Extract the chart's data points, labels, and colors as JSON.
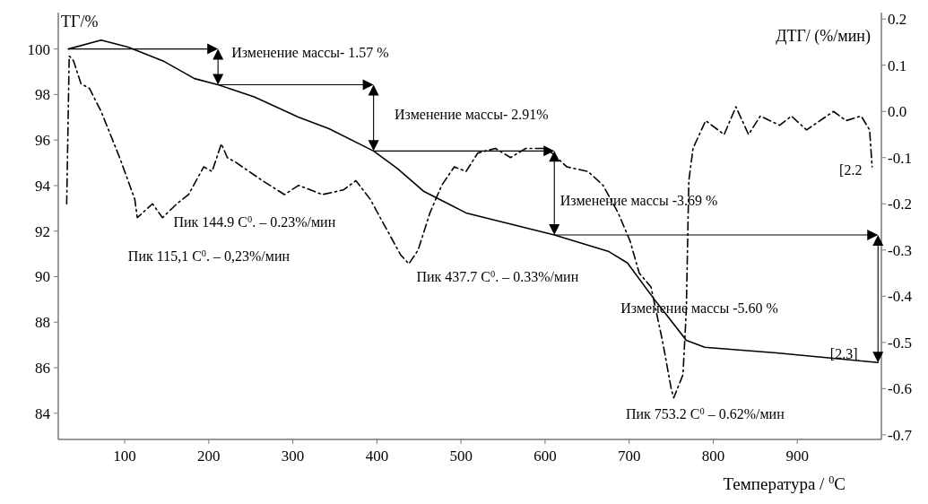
{
  "chart_data": {
    "type": "line",
    "xlabel": "Температура / $^{0}$C",
    "ylabel": "ТГ/%",
    "y2label": "ДТГ/ (%/мин)",
    "xlim": [
      21,
      1000
    ],
    "xticks": [
      100,
      200,
      300,
      400,
      500,
      600,
      700,
      800,
      900
    ],
    "ylim": [
      82.85,
      101.6
    ],
    "yticks": [
      84,
      86,
      88,
      90,
      92,
      94,
      96,
      98,
      100
    ],
    "y2lim": [
      -0.71,
      0.214
    ],
    "y2ticks": [
      {
        "value": -0.7,
        "label": "-0.7"
      },
      {
        "value": -0.6,
        "label": "-0.6"
      },
      {
        "value": -0.5,
        "label": "-0.5"
      },
      {
        "value": -0.4,
        "label": "-0.4"
      },
      {
        "value": -0.3,
        "label": "-0.3"
      },
      {
        "value": -0.2,
        "label": "-0.2"
      },
      {
        "value": -0.1,
        "label": "-0.1"
      },
      {
        "value": 0,
        "label": "0.0"
      },
      {
        "value": 0.1,
        "label": "0.1"
      },
      {
        "value": 0.2,
        "label": "0.2"
      }
    ],
    "grid": false,
    "series": [
      {
        "color": "#000000",
        "line_style": "solid",
        "x": [
          33,
          72,
          104,
          147,
          183,
          211,
          254,
          307,
          343,
          396,
          424,
          456,
          477,
          506,
          611,
          676,
          698,
          730,
          745,
          768,
          790,
          875,
          996
        ],
        "values": [
          100.0,
          100.39,
          100.08,
          99.45,
          98.7,
          98.43,
          97.9,
          97.0,
          96.5,
          95.52,
          94.76,
          93.74,
          93.35,
          92.8,
          91.83,
          91.1,
          90.6,
          89.0,
          88.3,
          87.2,
          86.9,
          86.65,
          86.23
        ]
      },
      {
        "color": "#000000",
        "line_style": "dashed",
        "axis": "y2",
        "x": [
          31,
          34,
          39,
          48,
          58,
          72,
          94,
          112,
          115,
          133,
          145,
          162,
          176,
          194,
          204,
          215,
          222,
          232,
          264,
          290,
          307,
          335,
          360,
          375,
          392,
          410,
          428,
          438,
          449,
          463,
          477,
          492,
          506,
          520,
          541,
          559,
          577,
          602,
          626,
          651,
          669,
          687,
          701,
          712,
          726,
          740,
          750,
          753,
          764,
          768,
          771,
          776,
          791,
          813,
          827,
          842,
          856,
          879,
          893,
          911,
          943,
          958,
          976,
          986,
          989
        ],
        "values": [
          -0.2,
          0.12,
          0.11,
          0.06,
          0.05,
          0.0,
          -0.1,
          -0.19,
          -0.23,
          -0.2,
          -0.23,
          -0.2,
          -0.18,
          -0.12,
          -0.13,
          -0.07,
          -0.1,
          -0.11,
          -0.15,
          -0.18,
          -0.16,
          -0.18,
          -0.17,
          -0.15,
          -0.19,
          -0.25,
          -0.31,
          -0.33,
          -0.3,
          -0.22,
          -0.16,
          -0.12,
          -0.13,
          -0.09,
          -0.08,
          -0.1,
          -0.08,
          -0.08,
          -0.12,
          -0.13,
          -0.16,
          -0.22,
          -0.28,
          -0.35,
          -0.38,
          -0.5,
          -0.6,
          -0.62,
          -0.57,
          -0.43,
          -0.15,
          -0.08,
          -0.02,
          -0.05,
          0.01,
          -0.05,
          -0.01,
          -0.03,
          -0.01,
          -0.04,
          0.0,
          -0.02,
          -0.01,
          -0.04,
          -0.12
        ]
      }
    ],
    "annotations": [
      {
        "text": "Изменение массы- 1.57 %",
        "x": 211,
        "y": 98.43
      },
      "Изменение массы- 2.91%",
      "Изменение массы -3.69 %",
      "Изменение массы -5.60 %",
      "Пик 144.9 C$^{0}$. – 0.23%/мин",
      "Пик 115,1 C$^{0}$. – 0,23%/мин",
      "Пик 437.7 C$^{0}$. – 0.33%/мин",
      "Пик 753.2 C$^{0}$ – 0.62%/мин",
      "[2.2",
      "[2.3]"
    ]
  }
}
